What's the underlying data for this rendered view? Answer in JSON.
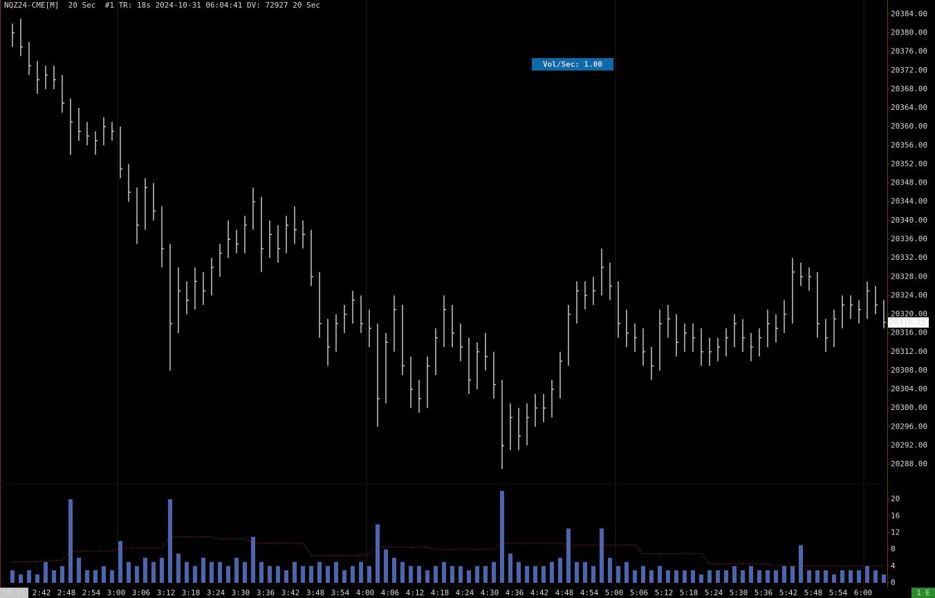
{
  "chart_data": [
    {
      "type": "ohlc",
      "title": "NQZ24-CME[M]  20 Sec  #1 TR: 18s 2024-10-31 06:04:41 DV: 72927 20 Sec",
      "annotation": "Vol/Sec: 1.00",
      "color": "#c8c8c8",
      "high": [
        20382,
        20383,
        20378,
        20374,
        20373,
        20373,
        20371,
        20366,
        20364,
        20361,
        20359,
        20362,
        20361,
        20360,
        20352,
        20347,
        20349,
        20348,
        20343,
        20335,
        20330,
        20327,
        20330,
        20329,
        20332,
        20335,
        20340,
        20338,
        20341,
        20347,
        20345,
        20340,
        20339,
        20341,
        20343,
        20340,
        20338,
        20329,
        20319,
        20320,
        20322,
        20325,
        20324,
        20321,
        20318,
        20316,
        20324,
        20322,
        20311,
        20306,
        20311,
        20317,
        20324,
        20322,
        20318,
        20315,
        20314,
        20316,
        20312,
        20306,
        20301,
        20300,
        20301,
        20303,
        20303,
        20306,
        20312,
        20322,
        20327,
        20327,
        20328,
        20334,
        20331,
        20327,
        20321,
        20318,
        20317,
        20313,
        20321,
        20322,
        20320,
        20318,
        20318,
        20317,
        20315,
        20315,
        20317,
        20320,
        20319,
        20316,
        20317,
        20321,
        20320,
        20323,
        20332,
        20331,
        20330,
        20329,
        20319,
        20321,
        20324,
        20324,
        20323,
        20327,
        20326,
        20323
      ],
      "low": [
        20377,
        20375,
        20371,
        20367,
        20368,
        20368,
        20363,
        20354,
        20357,
        20356,
        20354,
        20356,
        20357,
        20349,
        20344,
        20335,
        20338,
        20340,
        20330,
        20308,
        20316,
        20320,
        20321,
        20322,
        20324,
        20328,
        20332,
        20333,
        20333,
        20338,
        20329,
        20332,
        20331,
        20333,
        20335,
        20334,
        20326,
        20315,
        20309,
        20312,
        20316,
        20318,
        20316,
        20313,
        20296,
        20301,
        20312,
        20307,
        20300,
        20299,
        20300,
        20307,
        20313,
        20313,
        20310,
        20303,
        20304,
        20308,
        20302,
        20287,
        20291,
        20291,
        20292,
        20296,
        20297,
        20298,
        20302,
        20309,
        20318,
        20321,
        20322,
        20324,
        20323,
        20315,
        20313,
        20312,
        20309,
        20306,
        20308,
        20315,
        20311,
        20312,
        20312,
        20309,
        20309,
        20310,
        20311,
        20313,
        20312,
        20310,
        20311,
        20313,
        20314,
        20316,
        20318,
        20326,
        20325,
        20315,
        20312,
        20313,
        20317,
        20319,
        20318,
        20319,
        20320,
        20317
      ],
      "close": [
        20380,
        20377,
        20373,
        20370,
        20371,
        20370,
        20365,
        20361,
        20359,
        20358,
        20357,
        20360,
        20359,
        20351,
        20346,
        20339,
        20347,
        20342,
        20334,
        20318,
        20325,
        20323,
        20327,
        20325,
        20330,
        20333,
        20336,
        20335,
        20339,
        20344,
        20334,
        20337,
        20334,
        20339,
        20338,
        20337,
        20328,
        20318,
        20313,
        20318,
        20320,
        20323,
        20318,
        20317,
        20302,
        20314,
        20321,
        20309,
        20304,
        20302,
        20309,
        20315,
        20321,
        20316,
        20313,
        20306,
        20312,
        20311,
        20305,
        20292,
        20298,
        20294,
        20298,
        20300,
        20300,
        20304,
        20310,
        20320,
        20325,
        20324,
        20325,
        20330,
        20326,
        20318,
        20316,
        20315,
        20312,
        20309,
        20318,
        20319,
        20314,
        20316,
        20315,
        20312,
        20312,
        20313,
        20315,
        20318,
        20315,
        20313,
        20315,
        20318,
        20317,
        20320,
        20329,
        20328,
        20328,
        20318,
        20315,
        20319,
        20322,
        20322,
        20321,
        20325,
        20322,
        20318.25
      ],
      "last_price": 20318.25,
      "ylim": [
        20285,
        20387
      ],
      "yticks": [
        {
          "value": 20384,
          "label": "20384.00"
        },
        {
          "value": 20380,
          "label": "20380.00"
        },
        {
          "value": 20376,
          "label": "20376.00"
        },
        {
          "value": 20372,
          "label": "20372.00"
        },
        {
          "value": 20368,
          "label": "20368.00"
        },
        {
          "value": 20364,
          "label": "20364.00"
        },
        {
          "value": 20360,
          "label": "20360.00"
        },
        {
          "value": 20356,
          "label": "20356.00"
        },
        {
          "value": 20352,
          "label": "20352.00"
        },
        {
          "value": 20348,
          "label": "20348.00"
        },
        {
          "value": 20344,
          "label": "20344.00"
        },
        {
          "value": 20340,
          "label": "20340.00"
        },
        {
          "value": 20336,
          "label": "20336.00"
        },
        {
          "value": 20332,
          "label": "20332.00"
        },
        {
          "value": 20328,
          "label": "20328.00"
        },
        {
          "value": 20324,
          "label": "20324.00"
        },
        {
          "value": 20320,
          "label": "20320.00"
        },
        {
          "value": 20316,
          "label": "20316.00"
        },
        {
          "value": 20312,
          "label": "20312.00"
        },
        {
          "value": 20308,
          "label": "20308.00"
        },
        {
          "value": 20304,
          "label": "20304.00"
        },
        {
          "value": 20300,
          "label": "20300.00"
        },
        {
          "value": 20296,
          "label": "20296.00"
        },
        {
          "value": 20292,
          "label": "20292.00"
        },
        {
          "value": 20288,
          "label": "20288.00"
        }
      ]
    },
    {
      "type": "bar",
      "color": "#4a66b0",
      "ma_color": "#d03a2a",
      "values": [
        3,
        2,
        3,
        2,
        5,
        3,
        4,
        20,
        6,
        3,
        3,
        4,
        3,
        10,
        5,
        4,
        6,
        5,
        6,
        20,
        7,
        5,
        4,
        6,
        5,
        5,
        4,
        6,
        5,
        11,
        5,
        4,
        4,
        3,
        5,
        4,
        4,
        5,
        4,
        5,
        3,
        4,
        5,
        4,
        14,
        8,
        6,
        5,
        4,
        4,
        3,
        4,
        5,
        4,
        4,
        3,
        4,
        4,
        5,
        22,
        7,
        5,
        4,
        4,
        4,
        5,
        6,
        13,
        5,
        5,
        4,
        13,
        6,
        4,
        5,
        3,
        4,
        3,
        4,
        3,
        3,
        3,
        3,
        2,
        3,
        3,
        3,
        4,
        3,
        4,
        3,
        3,
        3,
        4,
        4,
        9,
        3,
        3,
        3,
        2,
        3,
        3,
        3,
        4,
        3,
        2
      ],
      "ma": [
        5,
        5,
        5,
        5,
        5.3,
        5.3,
        5.3,
        7.6,
        7.6,
        7.6,
        7.6,
        7.6,
        7.6,
        8.3,
        8.3,
        8.3,
        8.3,
        8.3,
        8.3,
        11,
        11,
        11,
        11,
        11,
        11,
        10.5,
        10.5,
        10.5,
        10.5,
        9.5,
        9.5,
        9.5,
        9.5,
        9.5,
        9.5,
        9.5,
        6.5,
        6.5,
        6.5,
        6.5,
        6.5,
        6.5,
        6.5,
        6.8,
        8.5,
        8.5,
        8.5,
        8.5,
        8.5,
        8.5,
        8.5,
        8,
        8,
        8,
        8,
        8,
        8,
        8,
        8,
        9.5,
        9.5,
        9.5,
        9.5,
        9.5,
        9.5,
        9.5,
        9.5,
        9,
        9,
        9,
        9,
        9,
        9,
        9,
        9,
        9,
        7,
        7,
        7,
        7,
        7,
        7,
        7,
        7,
        4.5,
        4.5,
        4.5,
        4.5,
        4.5,
        4.5,
        4.5,
        4.5,
        4,
        4,
        4,
        4,
        4,
        4,
        4,
        4,
        4,
        4,
        4,
        4,
        4,
        4
      ],
      "ylim": [
        0,
        23
      ],
      "yticks": [
        0,
        4,
        8,
        12,
        16,
        20
      ],
      "x_labels": [
        "10-31",
        "2:42",
        "2:48",
        "2:54",
        "3:00",
        "3:06",
        "3:12",
        "3:18",
        "3:24",
        "3:30",
        "3:36",
        "3:42",
        "3:48",
        "3:54",
        "4:00",
        "4:06",
        "4:12",
        "4:18",
        "4:24",
        "4:30",
        "4:36",
        "4:42",
        "4:48",
        "4:54",
        "5:00",
        "5:06",
        "5:12",
        "5:18",
        "5:24",
        "5:30",
        "5:36",
        "5:42",
        "5:48",
        "5:54",
        "6:00"
      ]
    }
  ],
  "status_badge": "1 E"
}
